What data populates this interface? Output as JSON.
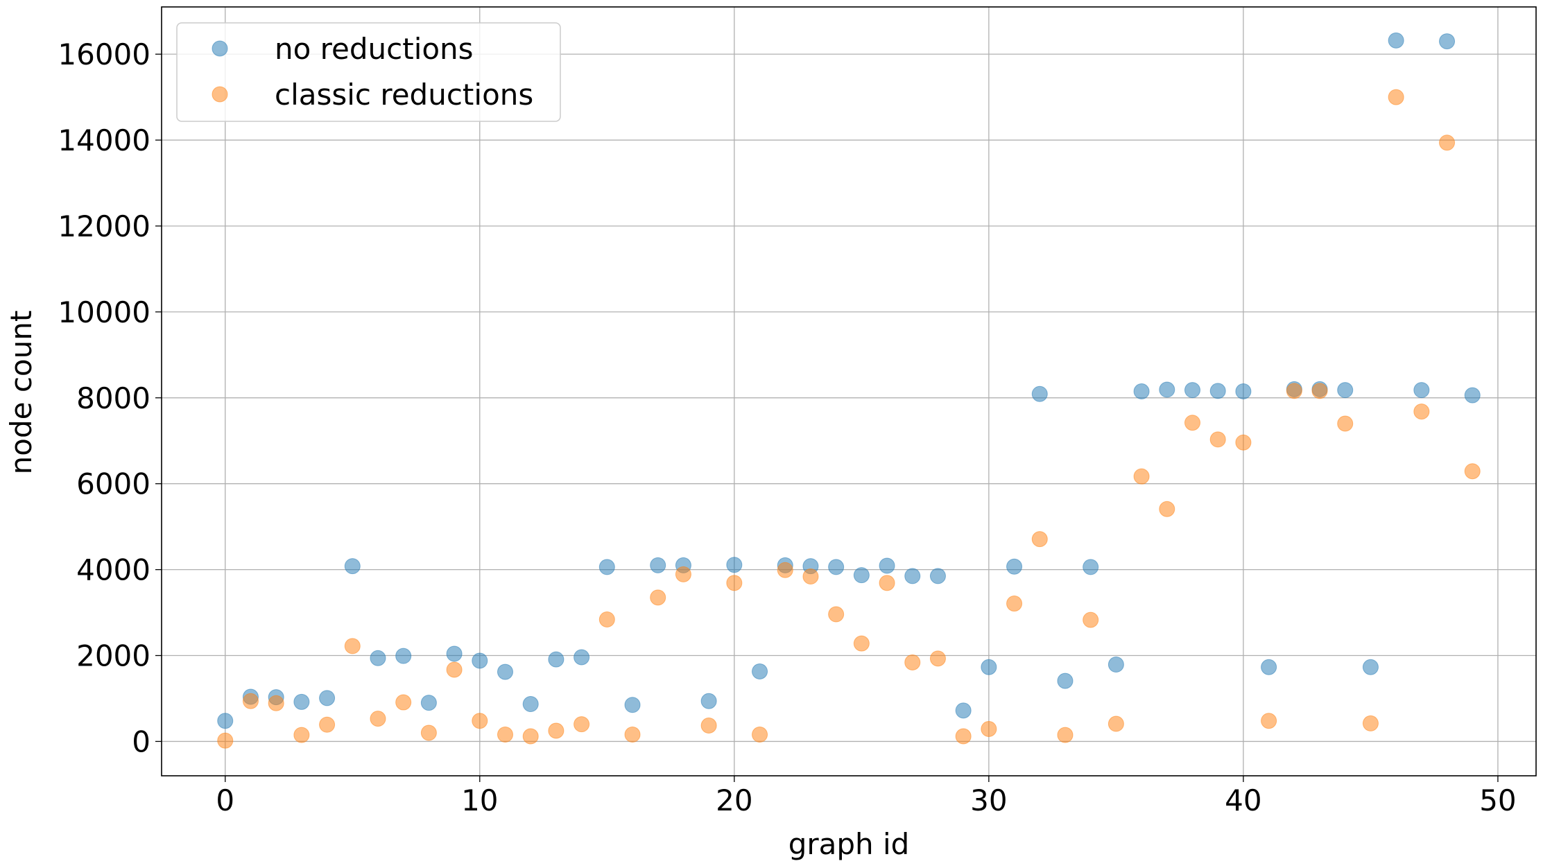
{
  "chart_data": {
    "type": "scatter",
    "xlabel": "graph id",
    "ylabel": "node count",
    "xlim": [
      -2.5,
      51.5
    ],
    "ylim": [
      -800,
      17100
    ],
    "xticks": [
      0,
      10,
      20,
      30,
      40,
      50
    ],
    "yticks": [
      0,
      2000,
      4000,
      6000,
      8000,
      10000,
      12000,
      14000,
      16000
    ],
    "grid": true,
    "legend": "top-left",
    "series": [
      {
        "name": "no reductions",
        "color": "#1f77b4",
        "points": [
          [
            0,
            480
          ],
          [
            1,
            1040
          ],
          [
            2,
            1030
          ],
          [
            3,
            920
          ],
          [
            4,
            1010
          ],
          [
            5,
            4080
          ],
          [
            6,
            1940
          ],
          [
            7,
            1990
          ],
          [
            8,
            900
          ],
          [
            9,
            2040
          ],
          [
            10,
            1880
          ],
          [
            11,
            1620
          ],
          [
            12,
            870
          ],
          [
            13,
            1910
          ],
          [
            14,
            1960
          ],
          [
            15,
            4060
          ],
          [
            16,
            850
          ],
          [
            17,
            4100
          ],
          [
            18,
            4100
          ],
          [
            19,
            940
          ],
          [
            20,
            4110
          ],
          [
            21,
            1630
          ],
          [
            22,
            4100
          ],
          [
            23,
            4080
          ],
          [
            24,
            4060
          ],
          [
            25,
            3870
          ],
          [
            26,
            4090
          ],
          [
            27,
            3850
          ],
          [
            28,
            3850
          ],
          [
            29,
            720
          ],
          [
            30,
            1730
          ],
          [
            31,
            4070
          ],
          [
            32,
            8090
          ],
          [
            33,
            1410
          ],
          [
            34,
            4060
          ],
          [
            35,
            1790
          ],
          [
            36,
            8150
          ],
          [
            37,
            8190
          ],
          [
            38,
            8180
          ],
          [
            39,
            8160
          ],
          [
            40,
            8150
          ],
          [
            41,
            1730
          ],
          [
            42,
            8200
          ],
          [
            43,
            8200
          ],
          [
            44,
            8180
          ],
          [
            45,
            1730
          ],
          [
            46,
            16320
          ],
          [
            47,
            8180
          ],
          [
            48,
            16300
          ],
          [
            49,
            8060
          ]
        ]
      },
      {
        "name": "classic reductions",
        "color": "#ff7f0e",
        "points": [
          [
            0,
            20
          ],
          [
            1,
            940
          ],
          [
            2,
            890
          ],
          [
            3,
            150
          ],
          [
            4,
            390
          ],
          [
            5,
            2220
          ],
          [
            6,
            530
          ],
          [
            7,
            910
          ],
          [
            8,
            200
          ],
          [
            9,
            1670
          ],
          [
            10,
            480
          ],
          [
            11,
            160
          ],
          [
            12,
            120
          ],
          [
            13,
            250
          ],
          [
            14,
            400
          ],
          [
            15,
            2840
          ],
          [
            16,
            160
          ],
          [
            17,
            3350
          ],
          [
            18,
            3890
          ],
          [
            19,
            370
          ],
          [
            20,
            3690
          ],
          [
            21,
            160
          ],
          [
            22,
            3990
          ],
          [
            23,
            3840
          ],
          [
            24,
            2960
          ],
          [
            25,
            2280
          ],
          [
            26,
            3690
          ],
          [
            27,
            1840
          ],
          [
            28,
            1930
          ],
          [
            29,
            120
          ],
          [
            30,
            290
          ],
          [
            31,
            3210
          ],
          [
            32,
            4710
          ],
          [
            33,
            150
          ],
          [
            34,
            2830
          ],
          [
            35,
            410
          ],
          [
            36,
            6170
          ],
          [
            37,
            5410
          ],
          [
            38,
            7420
          ],
          [
            39,
            7030
          ],
          [
            40,
            6960
          ],
          [
            41,
            480
          ],
          [
            42,
            8160
          ],
          [
            43,
            8160
          ],
          [
            44,
            7400
          ],
          [
            45,
            420
          ],
          [
            46,
            15000
          ],
          [
            47,
            7680
          ],
          [
            48,
            13940
          ],
          [
            49,
            6290
          ]
        ]
      }
    ]
  }
}
